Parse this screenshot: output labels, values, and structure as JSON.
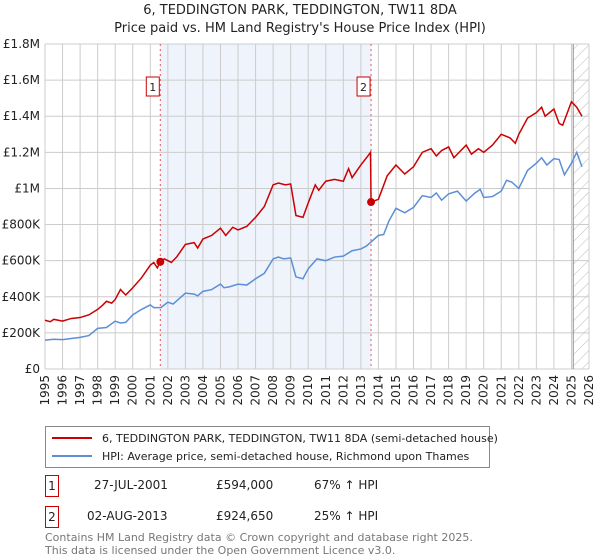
{
  "title_line1": "6, TEDDINGTON PARK, TEDDINGTON, TW11 8DA",
  "title_line2": "Price paid vs. HM Land Registry's House Price Index (HPI)",
  "chart_data": {
    "type": "line",
    "xlim": [
      1995,
      2026
    ],
    "ylim": [
      0,
      1800000
    ],
    "y_ticks": [
      {
        "v": 0,
        "label": "£0"
      },
      {
        "v": 200000,
        "label": "£200K"
      },
      {
        "v": 400000,
        "label": "£400K"
      },
      {
        "v": 600000,
        "label": "£600K"
      },
      {
        "v": 800000,
        "label": "£800K"
      },
      {
        "v": 1000000,
        "label": "£1M"
      },
      {
        "v": 1200000,
        "label": "£1.2M"
      },
      {
        "v": 1400000,
        "label": "£1.4M"
      },
      {
        "v": 1600000,
        "label": "£1.6M"
      },
      {
        "v": 1800000,
        "label": "£1.8M"
      }
    ],
    "x_ticks": [
      "1995",
      "1996",
      "1997",
      "1998",
      "1999",
      "2000",
      "2001",
      "2002",
      "2003",
      "2004",
      "2005",
      "2006",
      "2007",
      "2008",
      "2009",
      "2010",
      "2011",
      "2012",
      "2013",
      "2014",
      "2015",
      "2016",
      "2017",
      "2018",
      "2019",
      "2020",
      "2021",
      "2022",
      "2023",
      "2024",
      "2025",
      "2026"
    ],
    "grid": true,
    "shaded_period": [
      2001.57,
      2013.59
    ],
    "forecast_hatch_from": 2025.1,
    "colors": {
      "property": "#cc0000",
      "hpi": "#5b8fd6",
      "shade": "#eef3fc"
    },
    "series": [
      {
        "name": "6, TEDDINGTON PARK, TEDDINGTON, TW11 8DA (semi-detached house)",
        "key": "property",
        "points": [
          [
            1995,
            270000
          ],
          [
            1995.3,
            262000
          ],
          [
            1995.5,
            275000
          ],
          [
            1996,
            265000
          ],
          [
            1996.5,
            280000
          ],
          [
            1997,
            285000
          ],
          [
            1997.5,
            300000
          ],
          [
            1998,
            330000
          ],
          [
            1998.3,
            355000
          ],
          [
            1998.5,
            375000
          ],
          [
            1998.8,
            365000
          ],
          [
            1999,
            385000
          ],
          [
            1999.3,
            440000
          ],
          [
            1999.6,
            410000
          ],
          [
            2000,
            450000
          ],
          [
            2000.5,
            505000
          ],
          [
            2001,
            575000
          ],
          [
            2001.2,
            590000
          ],
          [
            2001.4,
            560000
          ],
          [
            2001.57,
            594000
          ],
          [
            2001.8,
            610000
          ],
          [
            2002.2,
            590000
          ],
          [
            2002.5,
            620000
          ],
          [
            2003,
            690000
          ],
          [
            2003.5,
            700000
          ],
          [
            2003.7,
            670000
          ],
          [
            2004,
            720000
          ],
          [
            2004.5,
            740000
          ],
          [
            2005,
            780000
          ],
          [
            2005.3,
            740000
          ],
          [
            2005.7,
            785000
          ],
          [
            2006,
            770000
          ],
          [
            2006.5,
            790000
          ],
          [
            2007,
            840000
          ],
          [
            2007.5,
            900000
          ],
          [
            2008,
            1020000
          ],
          [
            2008.3,
            1030000
          ],
          [
            2008.7,
            1020000
          ],
          [
            2009,
            1025000
          ],
          [
            2009.3,
            850000
          ],
          [
            2009.7,
            840000
          ],
          [
            2010,
            920000
          ],
          [
            2010.4,
            1020000
          ],
          [
            2010.6,
            990000
          ],
          [
            2011,
            1040000
          ],
          [
            2011.5,
            1050000
          ],
          [
            2012,
            1040000
          ],
          [
            2012.3,
            1110000
          ],
          [
            2012.5,
            1060000
          ],
          [
            2013,
            1130000
          ],
          [
            2013.4,
            1180000
          ],
          [
            2013.55,
            1200000
          ],
          [
            2013.58,
            924650
          ],
          [
            2014,
            940000
          ],
          [
            2014.5,
            1070000
          ],
          [
            2015,
            1130000
          ],
          [
            2015.5,
            1080000
          ],
          [
            2016,
            1120000
          ],
          [
            2016.5,
            1200000
          ],
          [
            2017,
            1220000
          ],
          [
            2017.3,
            1180000
          ],
          [
            2017.6,
            1210000
          ],
          [
            2018,
            1230000
          ],
          [
            2018.3,
            1170000
          ],
          [
            2018.7,
            1210000
          ],
          [
            2019,
            1240000
          ],
          [
            2019.3,
            1190000
          ],
          [
            2019.7,
            1220000
          ],
          [
            2020,
            1200000
          ],
          [
            2020.5,
            1240000
          ],
          [
            2021,
            1300000
          ],
          [
            2021.5,
            1280000
          ],
          [
            2021.8,
            1250000
          ],
          [
            2022,
            1300000
          ],
          [
            2022.5,
            1390000
          ],
          [
            2023,
            1420000
          ],
          [
            2023.3,
            1450000
          ],
          [
            2023.5,
            1400000
          ],
          [
            2024,
            1440000
          ],
          [
            2024.3,
            1360000
          ],
          [
            2024.5,
            1350000
          ],
          [
            2025,
            1480000
          ],
          [
            2025.3,
            1450000
          ],
          [
            2025.6,
            1400000
          ]
        ]
      },
      {
        "name": "HPI: Average price, semi-detached house, Richmond upon Thames",
        "key": "hpi",
        "points": [
          [
            1995,
            160000
          ],
          [
            1995.5,
            165000
          ],
          [
            1996,
            163000
          ],
          [
            1997,
            175000
          ],
          [
            1997.5,
            185000
          ],
          [
            1998,
            225000
          ],
          [
            1998.5,
            230000
          ],
          [
            1999,
            265000
          ],
          [
            1999.3,
            255000
          ],
          [
            1999.6,
            258000
          ],
          [
            2000,
            300000
          ],
          [
            2000.5,
            330000
          ],
          [
            2001,
            355000
          ],
          [
            2001.2,
            340000
          ],
          [
            2001.6,
            340000
          ],
          [
            2002,
            370000
          ],
          [
            2002.3,
            360000
          ],
          [
            2003,
            420000
          ],
          [
            2003.5,
            415000
          ],
          [
            2003.7,
            405000
          ],
          [
            2004,
            430000
          ],
          [
            2004.5,
            440000
          ],
          [
            2005,
            470000
          ],
          [
            2005.2,
            450000
          ],
          [
            2005.5,
            455000
          ],
          [
            2006,
            470000
          ],
          [
            2006.5,
            465000
          ],
          [
            2007,
            500000
          ],
          [
            2007.5,
            530000
          ],
          [
            2008,
            610000
          ],
          [
            2008.3,
            620000
          ],
          [
            2008.6,
            610000
          ],
          [
            2009,
            615000
          ],
          [
            2009.3,
            510000
          ],
          [
            2009.7,
            500000
          ],
          [
            2010,
            555000
          ],
          [
            2010.5,
            610000
          ],
          [
            2011,
            600000
          ],
          [
            2011.5,
            620000
          ],
          [
            2012,
            625000
          ],
          [
            2012.5,
            655000
          ],
          [
            2013,
            665000
          ],
          [
            2013.3,
            680000
          ],
          [
            2013.6,
            705000
          ],
          [
            2014,
            740000
          ],
          [
            2014.3,
            745000
          ],
          [
            2014.6,
            820000
          ],
          [
            2015,
            890000
          ],
          [
            2015.5,
            865000
          ],
          [
            2016,
            895000
          ],
          [
            2016.5,
            960000
          ],
          [
            2017,
            950000
          ],
          [
            2017.3,
            975000
          ],
          [
            2017.6,
            935000
          ],
          [
            2018,
            970000
          ],
          [
            2018.5,
            985000
          ],
          [
            2019,
            930000
          ],
          [
            2019.5,
            975000
          ],
          [
            2019.8,
            995000
          ],
          [
            2020,
            950000
          ],
          [
            2020.5,
            955000
          ],
          [
            2021,
            985000
          ],
          [
            2021.3,
            1045000
          ],
          [
            2021.6,
            1035000
          ],
          [
            2022,
            1000000
          ],
          [
            2022.5,
            1100000
          ],
          [
            2023,
            1140000
          ],
          [
            2023.3,
            1170000
          ],
          [
            2023.6,
            1130000
          ],
          [
            2024,
            1165000
          ],
          [
            2024.3,
            1160000
          ],
          [
            2024.6,
            1075000
          ],
          [
            2025,
            1140000
          ],
          [
            2025.3,
            1200000
          ],
          [
            2025.6,
            1120000
          ]
        ]
      }
    ],
    "sales": [
      {
        "label": "1",
        "x": 2001.57,
        "y": 594000
      },
      {
        "label": "2",
        "x": 2013.58,
        "y": 924650
      }
    ]
  },
  "legend": {
    "property": "6, TEDDINGTON PARK, TEDDINGTON, TW11 8DA (semi-detached house)",
    "hpi": "HPI: Average price, semi-detached house, Richmond upon Thames"
  },
  "transactions": [
    {
      "num": "1",
      "date": "27-JUL-2001",
      "price": "£594,000",
      "hpi": "67% ↑ HPI"
    },
    {
      "num": "2",
      "date": "02-AUG-2013",
      "price": "£924,650",
      "hpi": "25% ↑ HPI"
    }
  ],
  "footer": {
    "line1": "Contains HM Land Registry data © Crown copyright and database right 2025.",
    "line2": "This data is licensed under the Open Government Licence v3.0."
  }
}
